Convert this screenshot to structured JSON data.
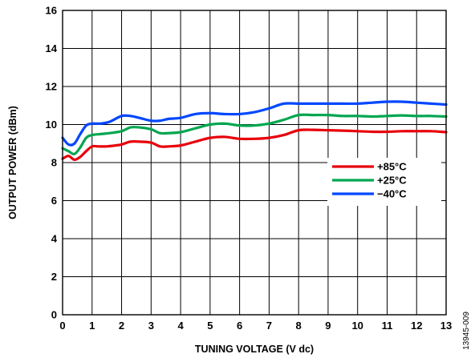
{
  "chart_data": {
    "type": "line",
    "title": "",
    "xlabel": "TUNING VOLTAGE (V dc)",
    "ylabel": "OUTPUT POWER (dBm)",
    "xlim": [
      0,
      13
    ],
    "ylim": [
      0,
      16
    ],
    "x_ticks": [
      0,
      1,
      2,
      3,
      4,
      5,
      6,
      7,
      8,
      9,
      10,
      11,
      12,
      13
    ],
    "y_ticks": [
      0,
      2,
      4,
      6,
      8,
      10,
      12,
      14,
      16
    ],
    "grid": true,
    "legend_position": "center-right",
    "series": [
      {
        "name": "+85°C",
        "color": "#e8000b",
        "x": [
          0,
          0.2,
          0.4,
          0.6,
          0.8,
          1,
          1.2,
          1.5,
          1.8,
          2,
          2.3,
          2.6,
          3,
          3.3,
          3.6,
          4,
          4.5,
          5,
          5.5,
          6,
          6.5,
          7,
          7.5,
          8,
          8.5,
          9,
          9.5,
          10,
          10.5,
          11,
          11.5,
          12,
          12.5,
          13
        ],
        "y": [
          8.2,
          8.35,
          8.15,
          8.3,
          8.6,
          8.85,
          8.85,
          8.85,
          8.9,
          8.95,
          9.1,
          9.1,
          9.05,
          8.85,
          8.85,
          8.9,
          9.1,
          9.3,
          9.35,
          9.25,
          9.25,
          9.3,
          9.45,
          9.7,
          9.72,
          9.7,
          9.68,
          9.65,
          9.62,
          9.62,
          9.65,
          9.65,
          9.65,
          9.6
        ]
      },
      {
        "name": "+25°C",
        "color": "#00a650",
        "x": [
          0,
          0.2,
          0.4,
          0.6,
          0.8,
          1,
          1.3,
          1.6,
          2,
          2.3,
          2.6,
          3,
          3.3,
          3.6,
          4,
          4.5,
          5,
          5.5,
          6,
          6.5,
          7,
          7.5,
          8,
          8.5,
          9,
          9.5,
          10,
          10.5,
          11,
          11.5,
          12,
          12.5,
          13
        ],
        "y": [
          8.75,
          8.6,
          8.45,
          8.8,
          9.3,
          9.45,
          9.5,
          9.55,
          9.65,
          9.85,
          9.85,
          9.75,
          9.55,
          9.55,
          9.6,
          9.8,
          10.0,
          10.05,
          9.95,
          9.95,
          10.05,
          10.25,
          10.5,
          10.5,
          10.5,
          10.45,
          10.45,
          10.42,
          10.45,
          10.48,
          10.45,
          10.45,
          10.42
        ]
      },
      {
        "name": "−40°C",
        "color": "#0047ff",
        "x": [
          0,
          0.2,
          0.4,
          0.6,
          0.8,
          1,
          1.3,
          1.6,
          2,
          2.3,
          2.6,
          3,
          3.3,
          3.6,
          4,
          4.5,
          5,
          5.5,
          6,
          6.5,
          7,
          7.5,
          8,
          8.5,
          9,
          9.5,
          10,
          10.5,
          11,
          11.5,
          12,
          12.5,
          13
        ],
        "y": [
          9.3,
          8.95,
          9.0,
          9.5,
          9.95,
          10.05,
          10.05,
          10.15,
          10.45,
          10.45,
          10.35,
          10.2,
          10.2,
          10.3,
          10.35,
          10.55,
          10.6,
          10.55,
          10.55,
          10.65,
          10.85,
          11.1,
          11.1,
          11.1,
          11.1,
          11.1,
          11.1,
          11.15,
          11.2,
          11.2,
          11.15,
          11.1,
          11.05
        ]
      }
    ]
  },
  "figure_id": "13945-009"
}
